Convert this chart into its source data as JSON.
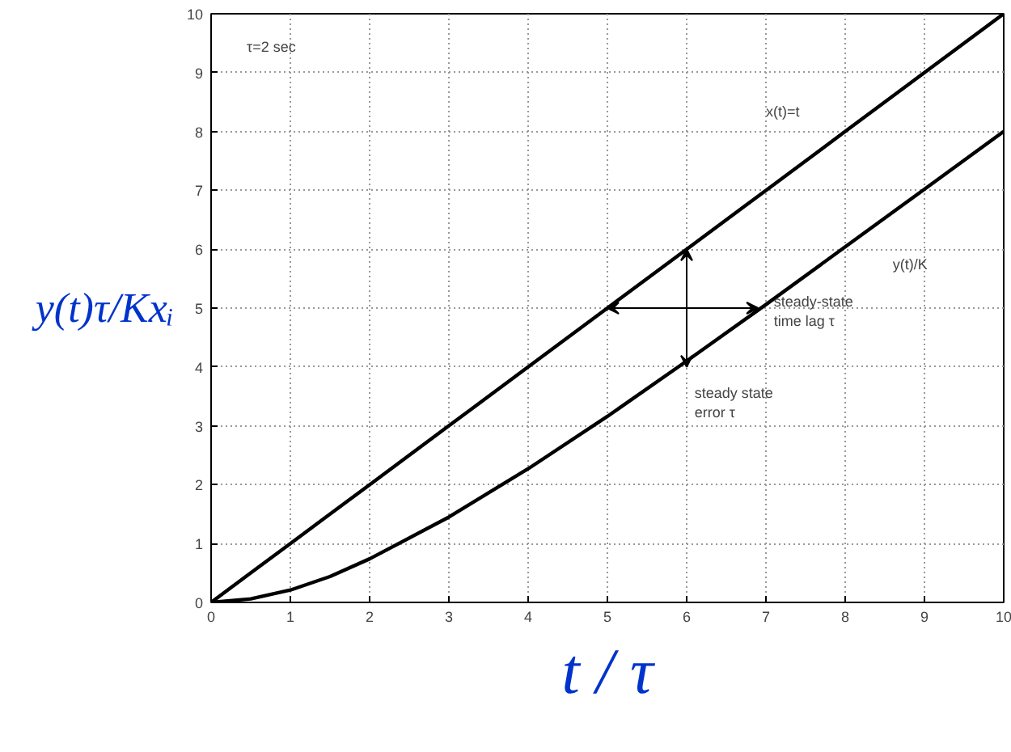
{
  "chart_data": {
    "type": "line",
    "xlabel": "t / τ",
    "ylabel": "y(t)τ/Kxᵢ",
    "x": [
      0,
      0.5,
      1,
      1.5,
      2,
      3,
      4,
      5,
      6,
      7,
      8,
      9,
      10
    ],
    "xlim": [
      0,
      10
    ],
    "ylim": [
      0,
      10
    ],
    "xticks": [
      0,
      1,
      2,
      3,
      4,
      5,
      6,
      7,
      8,
      9,
      10
    ],
    "yticks": [
      0,
      1,
      2,
      3,
      4,
      5,
      6,
      7,
      8,
      9,
      10
    ],
    "grid": true,
    "line_style": "solid",
    "marker": "none",
    "series": [
      {
        "name": "x(t)=t",
        "color": "#000000",
        "values": [
          0,
          0.5,
          1,
          1.5,
          2,
          3,
          4,
          5,
          6,
          7,
          8,
          9,
          10
        ]
      },
      {
        "name": "y(t)/K",
        "color": "#000000",
        "values": [
          0,
          0.06,
          0.21,
          0.44,
          0.74,
          1.45,
          2.27,
          3.16,
          4.1,
          5.06,
          6.04,
          7.02,
          8.0
        ]
      }
    ],
    "annotations": [
      "τ=2 sec",
      {
        "text": "steady-state time lag τ",
        "x": 6.9,
        "y": 5
      },
      {
        "text": "steady state error τ",
        "x": 6,
        "y": 4
      }
    ]
  }
}
